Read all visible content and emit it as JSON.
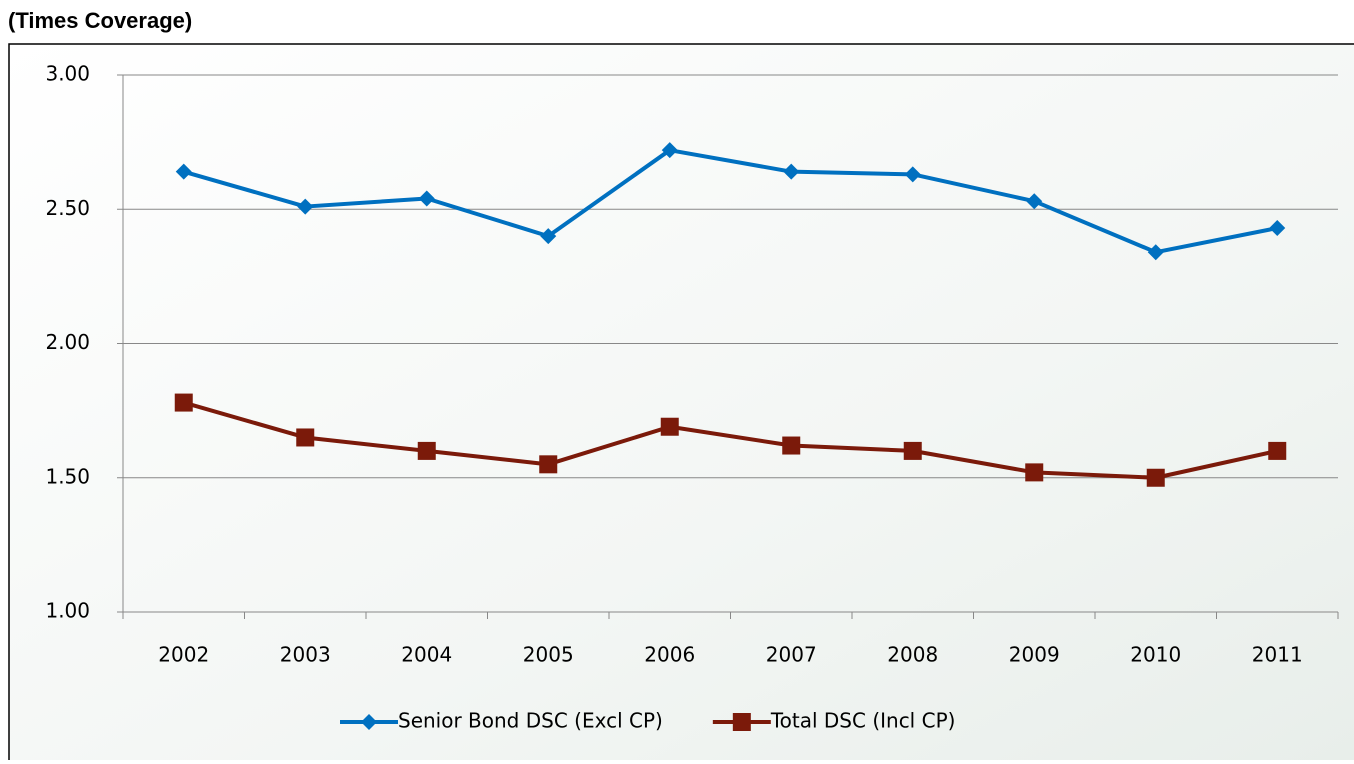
{
  "chart_data": {
    "type": "line",
    "title": "(Times Coverage)",
    "categories": [
      "2002",
      "2003",
      "2004",
      "2005",
      "2006",
      "2007",
      "2008",
      "2009",
      "2010",
      "2011"
    ],
    "series": [
      {
        "name": "Senior Bond DSC (Excl CP)",
        "color": "#0070c0",
        "marker": "diamond",
        "values": [
          2.64,
          2.51,
          2.54,
          2.4,
          2.72,
          2.64,
          2.63,
          2.53,
          2.34,
          2.43
        ]
      },
      {
        "name": "Total DSC (Incl CP)",
        "color": "#7b1a0a",
        "marker": "square",
        "values": [
          1.78,
          1.65,
          1.6,
          1.55,
          1.69,
          1.62,
          1.6,
          1.52,
          1.5,
          1.6
        ]
      }
    ],
    "ylim": [
      1,
      3
    ],
    "yticks": [
      {
        "value": 1,
        "label": "1.00"
      },
      {
        "value": 1.5,
        "label": "1.50"
      },
      {
        "value": 2,
        "label": "2.00"
      },
      {
        "value": 2.5,
        "label": "2.50"
      },
      {
        "value": 3,
        "label": "3.00"
      }
    ],
    "grid": true,
    "legend": "bottom"
  }
}
